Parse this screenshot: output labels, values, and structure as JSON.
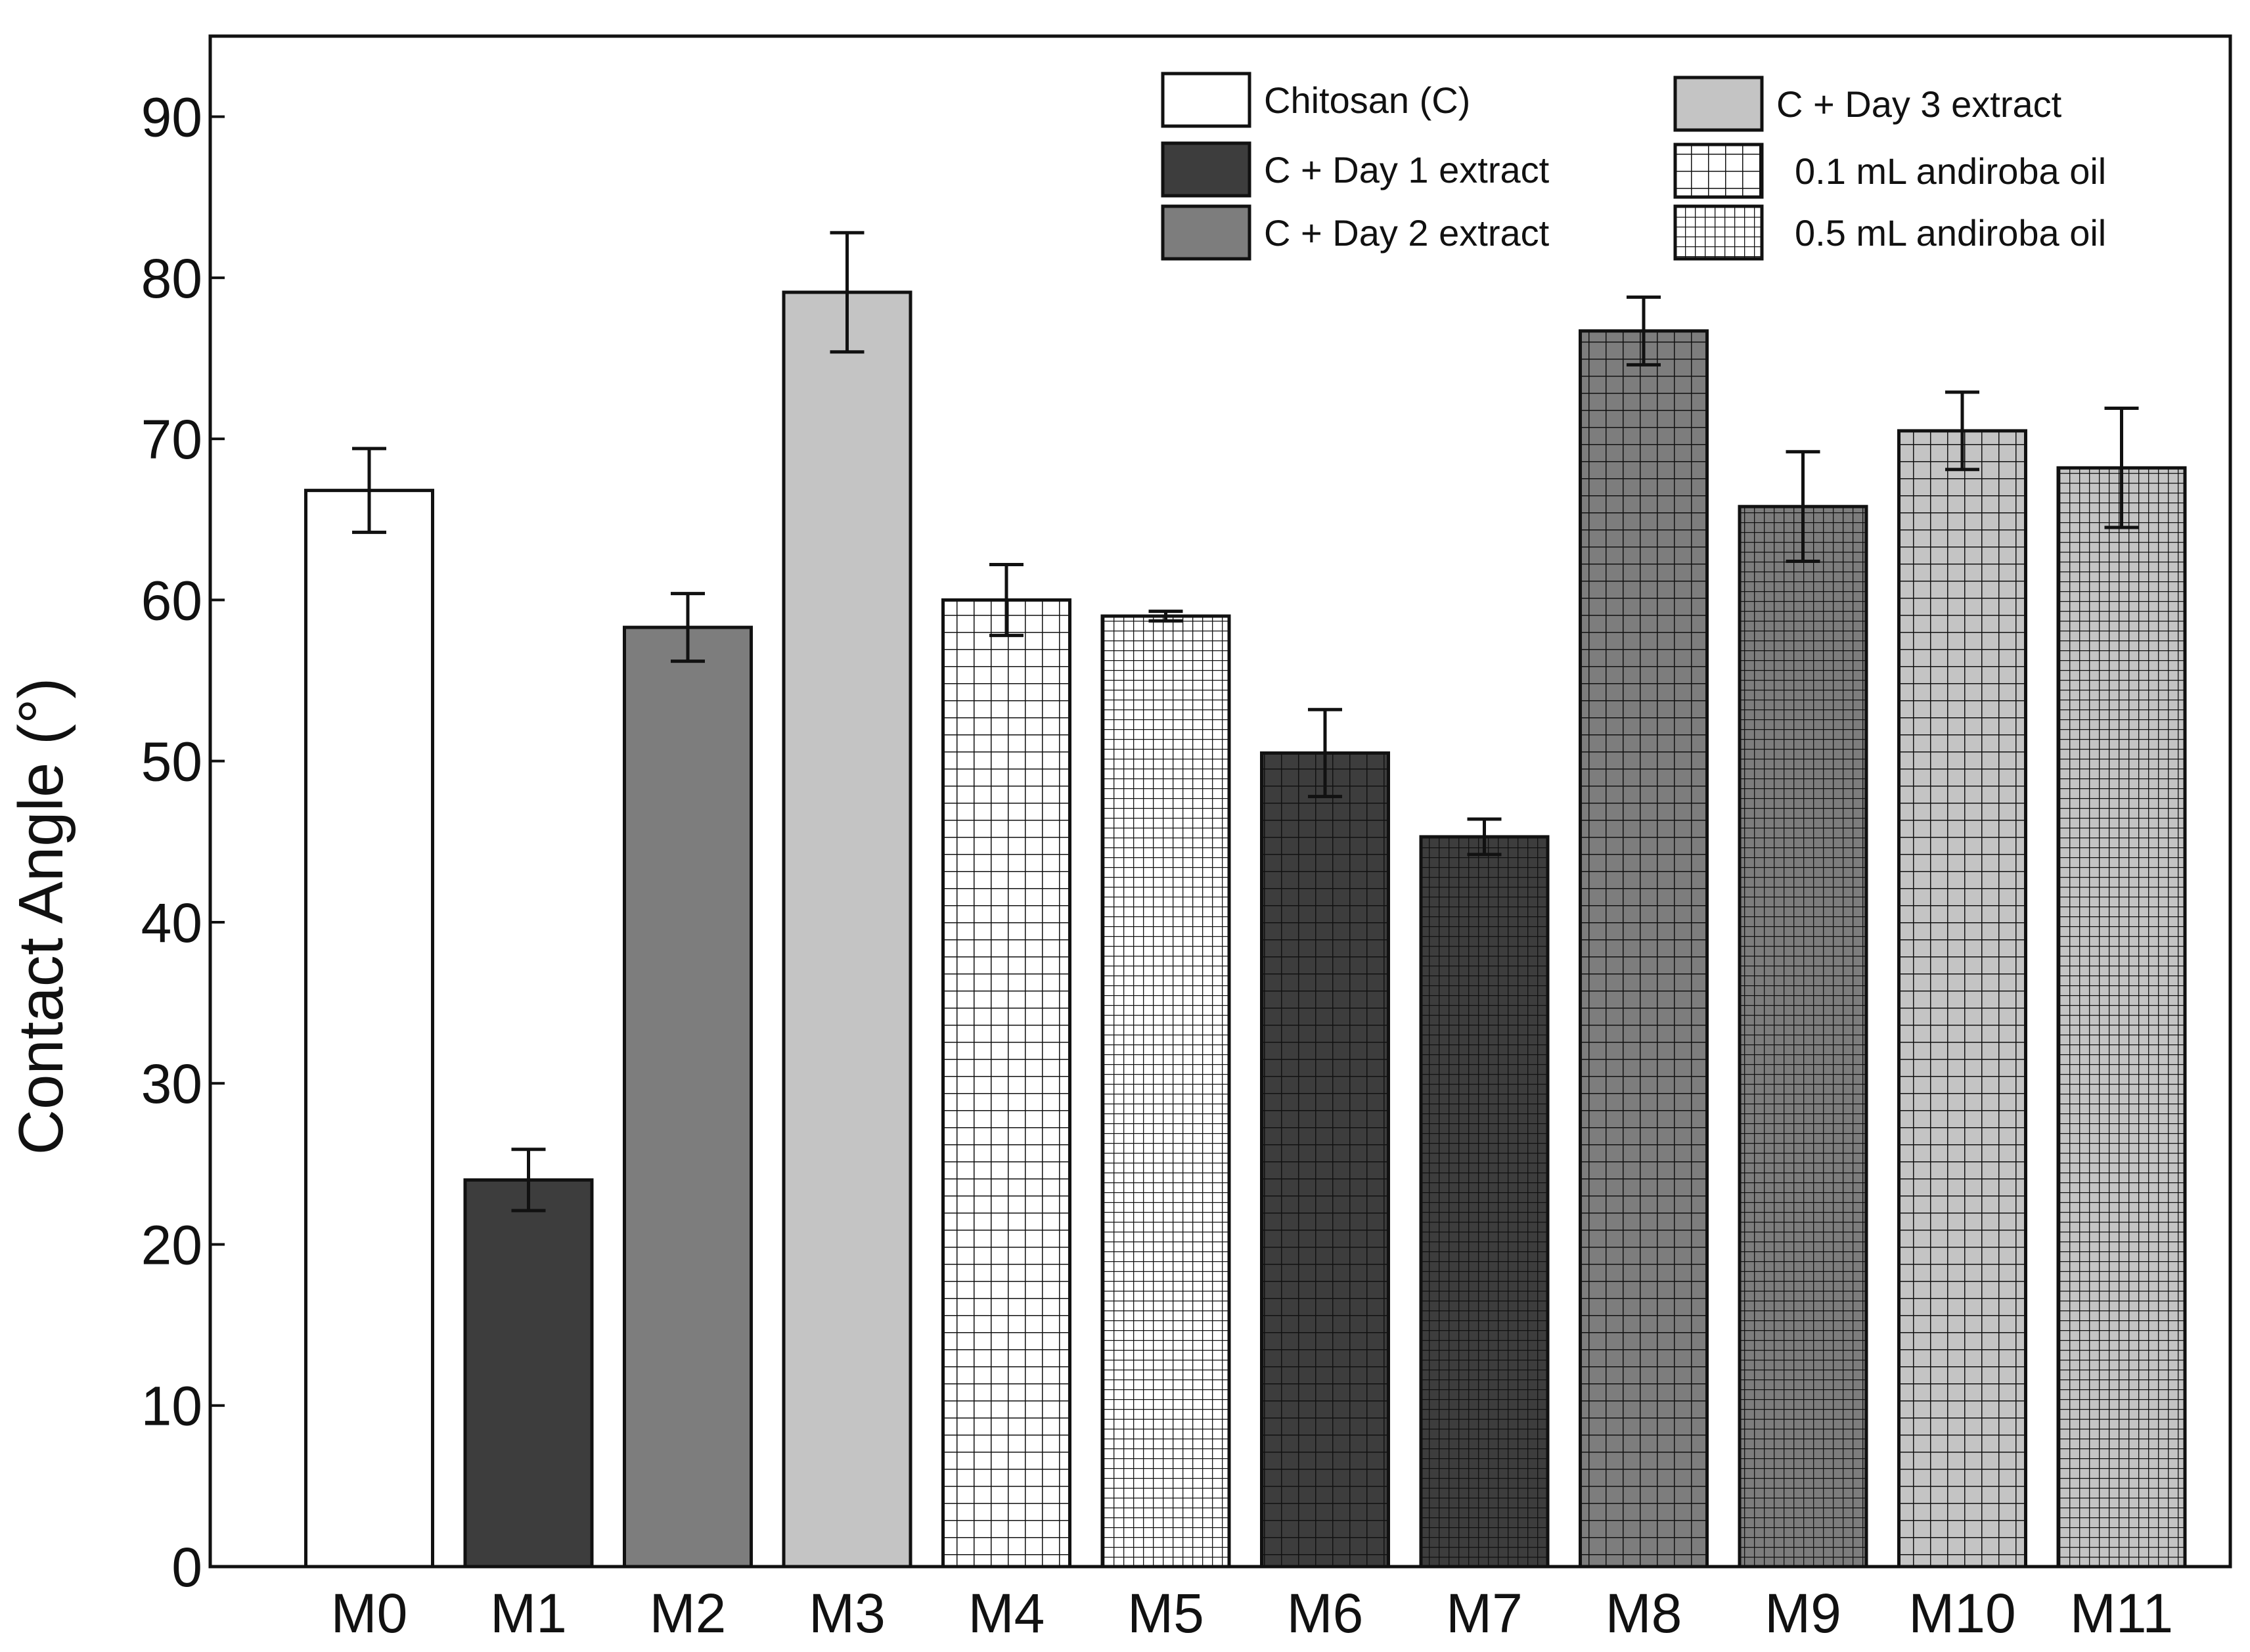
{
  "chart_data": {
    "type": "bar",
    "title": "",
    "xlabel": "",
    "ylabel": "Contact Angle (°)",
    "ylim": [
      0,
      95
    ],
    "yticks": [
      0,
      10,
      20,
      30,
      40,
      50,
      60,
      70,
      80,
      90
    ],
    "grid": false,
    "legend_position": "top-right",
    "categories": [
      "M0",
      "M1",
      "M2",
      "M3",
      "M4",
      "M5",
      "M6",
      "M7",
      "M8",
      "M9",
      "M10",
      "M11"
    ],
    "values": [
      66.8,
      24.0,
      58.3,
      79.1,
      60.0,
      59.0,
      50.5,
      45.3,
      76.7,
      65.8,
      70.5,
      68.2
    ],
    "errors": [
      2.6,
      1.9,
      2.1,
      3.7,
      2.2,
      0.3,
      2.7,
      1.1,
      2.1,
      3.4,
      2.4,
      3.7
    ],
    "bar_fill_group": [
      "chitosan",
      "day1",
      "day2",
      "day3",
      "chitosan",
      "chitosan",
      "day1",
      "day1",
      "day2",
      "day2",
      "day3",
      "day3"
    ],
    "bar_pattern": [
      "none",
      "none",
      "none",
      "none",
      "oil01",
      "oil05",
      "oil01",
      "oil05",
      "oil01",
      "oil05",
      "oil01",
      "oil05"
    ],
    "legend": [
      {
        "label": "Chitosan (C)",
        "swatch": "chitosan",
        "pattern": "none"
      },
      {
        "label": "C + Day 1 extract",
        "swatch": "day1",
        "pattern": "none"
      },
      {
        "label": "C + Day 2 extract",
        "swatch": "day2",
        "pattern": "none"
      },
      {
        "label": "C + Day 3 extract",
        "swatch": "day3",
        "pattern": "none"
      },
      {
        "label": "0.1 mL  andiroba oil",
        "swatch": "chitosan",
        "pattern": "oil01"
      },
      {
        "label": "0.5 mL  andiroba oil",
        "swatch": "chitosan",
        "pattern": "oil05"
      }
    ],
    "colors": {
      "chitosan": "#ffffff",
      "day1": "#3d3d3d",
      "day2": "#7d7d7d",
      "day3": "#c4c4c4",
      "stroke": "#111111"
    }
  }
}
